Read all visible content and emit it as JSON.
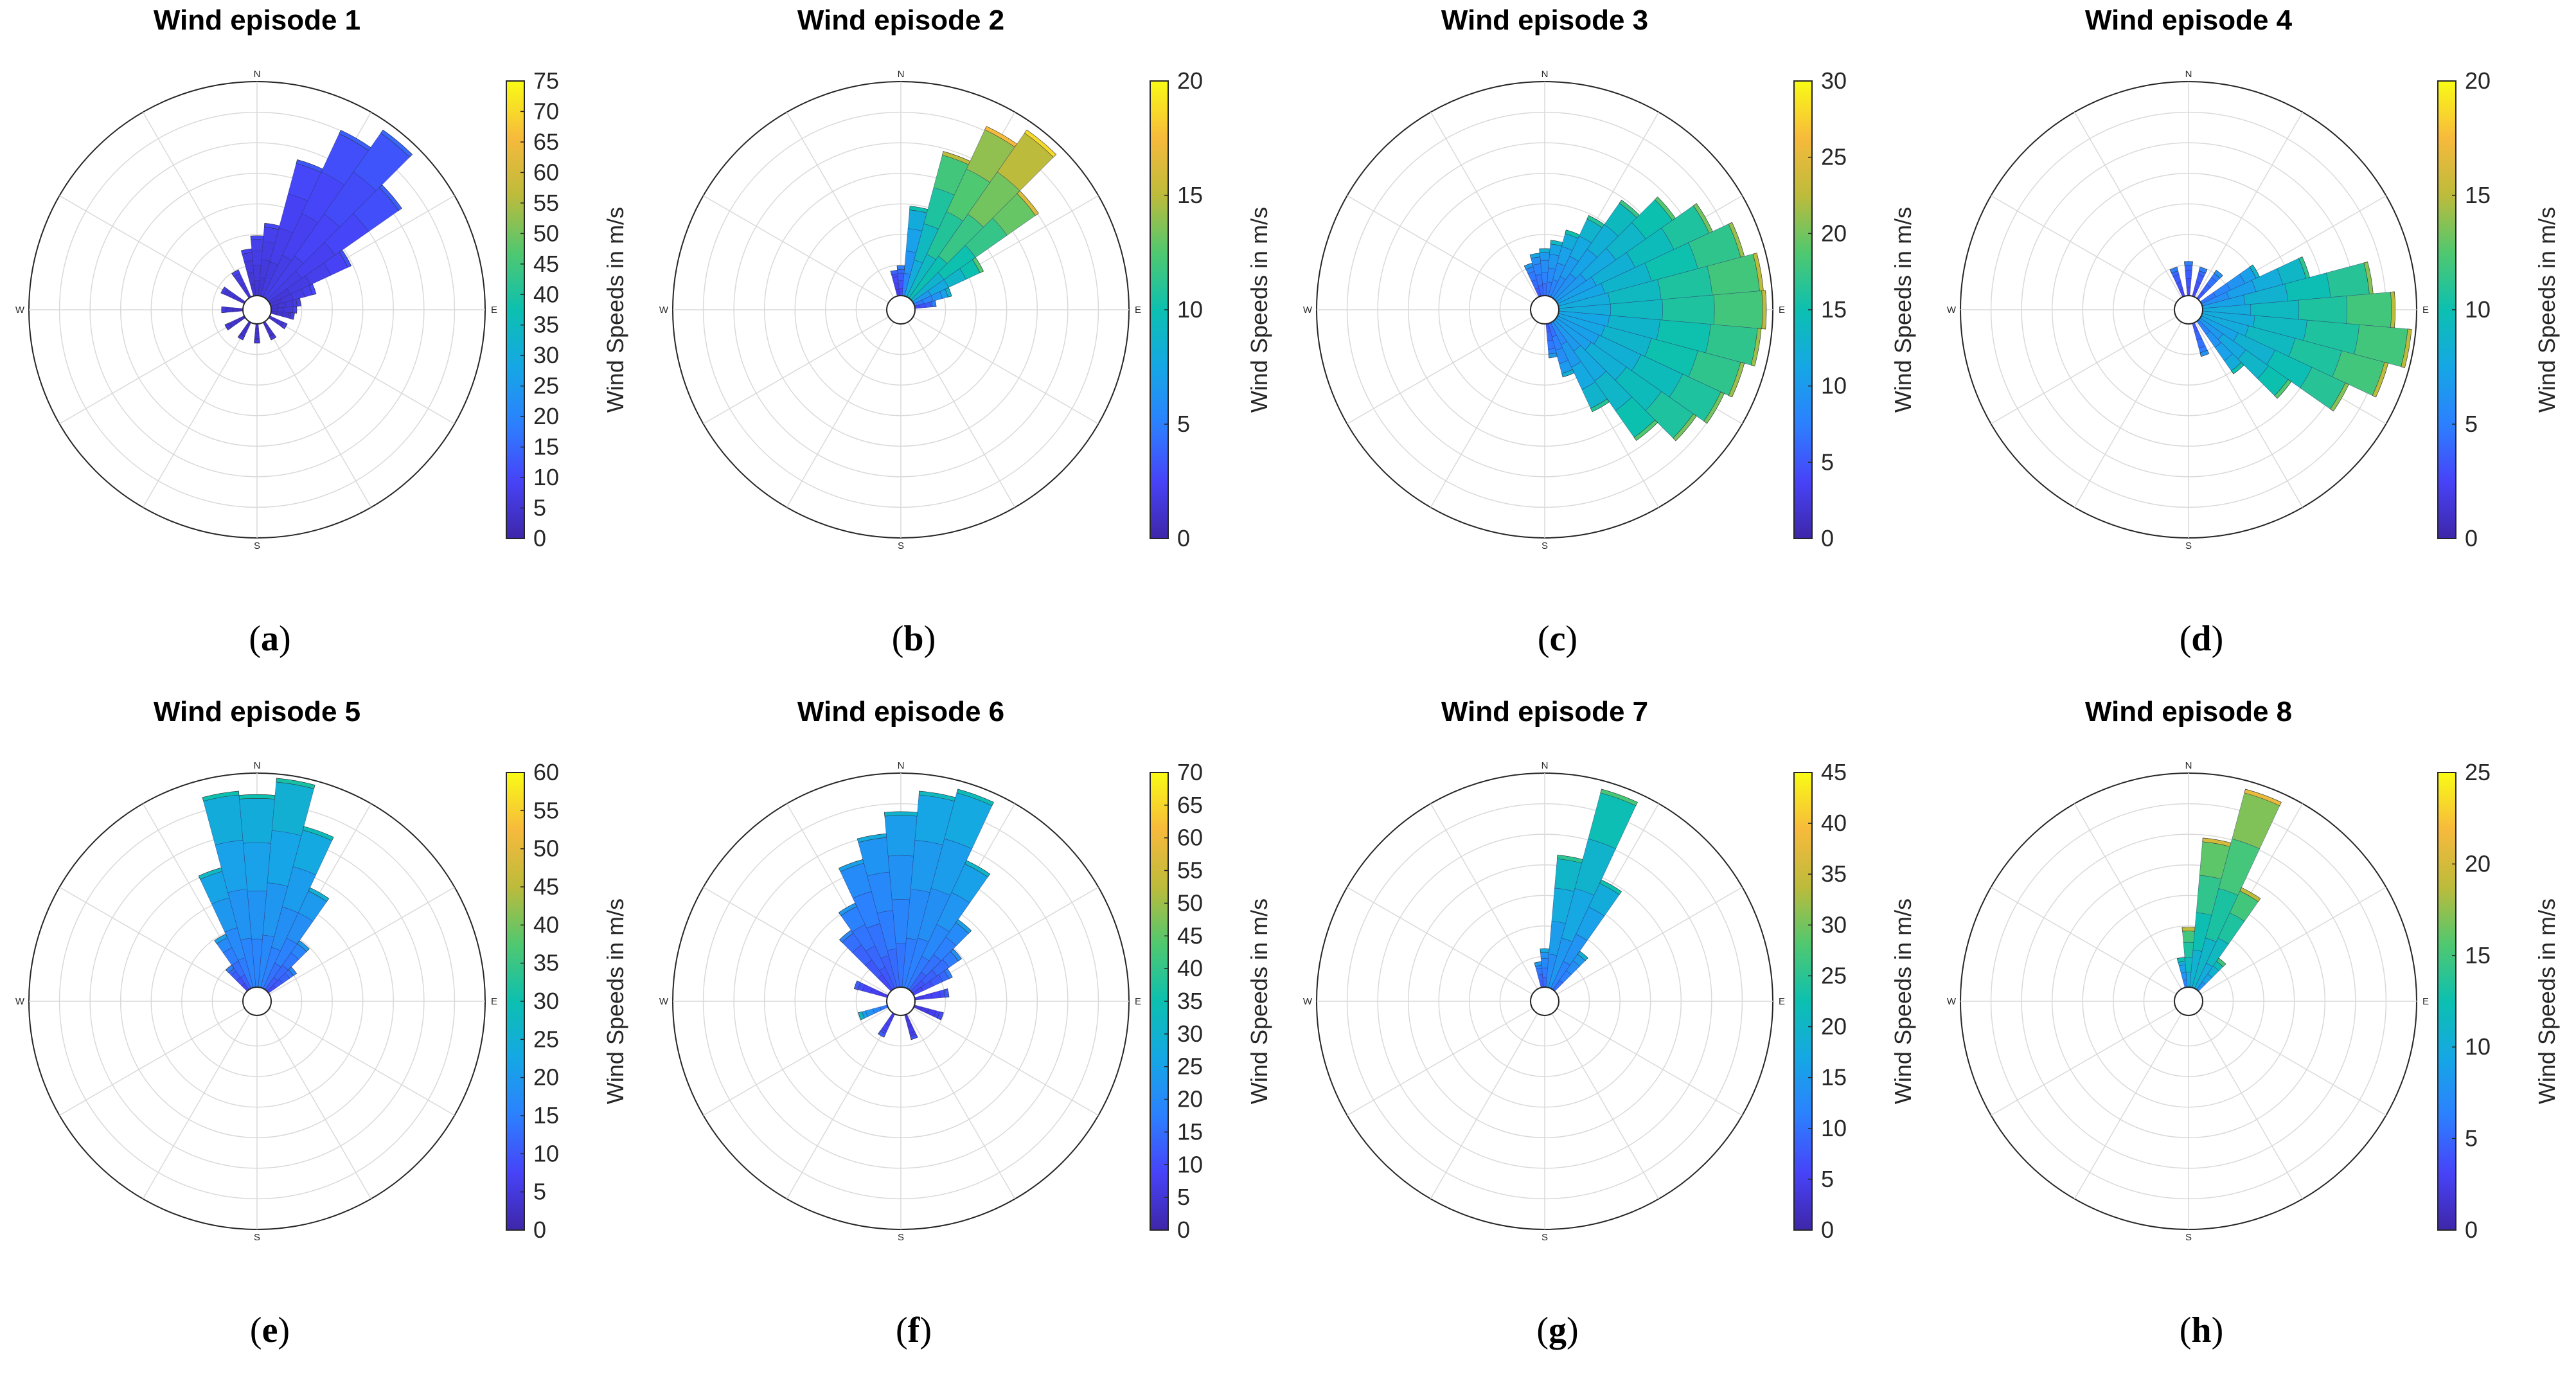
{
  "figure": {
    "colormap_stops": [
      "#3e26a8",
      "#4743f8",
      "#2c80ff",
      "#15a7e5",
      "#0cc0b0",
      "#50c86f",
      "#bdbb3b",
      "#f7ba3c",
      "#f9fb15"
    ]
  },
  "chart_data": [
    {
      "type": "polar-bar",
      "title": "Wind episode 1",
      "caption_letter": "a",
      "directions": [
        "N",
        "E",
        "S",
        "W"
      ],
      "colorbar": {
        "label": "Wind Speeds in m/s",
        "min": 0,
        "max": 75,
        "ticks": [
          0,
          5,
          10,
          15,
          20,
          25,
          30,
          35,
          40,
          45,
          50,
          55,
          60,
          65,
          70,
          75
        ]
      },
      "num_rings": 7,
      "sectors": [
        {
          "angle": 10,
          "r": 0.34,
          "v": 8
        },
        {
          "angle": 20,
          "r": 0.66,
          "v": 10
        },
        {
          "angle": 30,
          "r": 0.86,
          "v": 11
        },
        {
          "angle": 40,
          "r": 0.96,
          "v": 12
        },
        {
          "angle": 50,
          "r": 0.76,
          "v": 11
        },
        {
          "angle": 60,
          "r": 0.42,
          "v": 9
        },
        {
          "angle": 70,
          "r": 0.22,
          "v": 8
        },
        {
          "angle": 80,
          "r": 0.14,
          "v": 7
        },
        {
          "angle": 90,
          "r": 0.12,
          "v": 7
        },
        {
          "angle": 100,
          "r": 0.11,
          "v": 6
        },
        {
          "angle": 120,
          "r": 0.09,
          "v": 6
        },
        {
          "angle": 150,
          "r": 0.09,
          "v": 5
        },
        {
          "angle": 180,
          "r": 0.09,
          "v": 5
        },
        {
          "angle": 210,
          "r": 0.09,
          "v": 5
        },
        {
          "angle": 240,
          "r": 0.1,
          "v": 5
        },
        {
          "angle": 270,
          "r": 0.1,
          "v": 5
        },
        {
          "angle": 300,
          "r": 0.12,
          "v": 6
        },
        {
          "angle": 330,
          "r": 0.14,
          "v": 7
        },
        {
          "angle": 350,
          "r": 0.22,
          "v": 7
        },
        {
          "angle": 0,
          "r": 0.28,
          "v": 8
        }
      ]
    },
    {
      "type": "polar-bar",
      "title": "Wind episode 2",
      "caption_letter": "b",
      "directions": [
        "N",
        "E",
        "S",
        "W"
      ],
      "colorbar": {
        "label": "Wind Speeds in m/s",
        "min": 0,
        "max": 20,
        "ticks": [
          0,
          5,
          10,
          15,
          20
        ]
      },
      "num_rings": 7,
      "sectors": [
        {
          "angle": 10,
          "r": 0.42,
          "v": 8
        },
        {
          "angle": 20,
          "r": 0.7,
          "v": 12
        },
        {
          "angle": 30,
          "r": 0.88,
          "v": 14
        },
        {
          "angle": 40,
          "r": 0.96,
          "v": 15
        },
        {
          "angle": 50,
          "r": 0.72,
          "v": 13
        },
        {
          "angle": 60,
          "r": 0.36,
          "v": 10
        },
        {
          "angle": 70,
          "r": 0.18,
          "v": 7
        },
        {
          "angle": 80,
          "r": 0.1,
          "v": 4
        },
        {
          "angle": 350,
          "r": 0.12,
          "v": 3
        },
        {
          "angle": 0,
          "r": 0.14,
          "v": 4
        }
      ]
    },
    {
      "type": "polar-bar",
      "title": "Wind episode 3",
      "caption_letter": "c",
      "directions": [
        "N",
        "E",
        "S",
        "W"
      ],
      "colorbar": {
        "label": "Wind Speeds in m/s",
        "min": 0,
        "max": 30,
        "ticks": [
          0,
          5,
          10,
          15,
          20,
          25,
          30
        ]
      },
      "num_rings": 7,
      "sectors": [
        {
          "angle": 0,
          "r": 0.22,
          "v": 10
        },
        {
          "angle": 10,
          "r": 0.26,
          "v": 11
        },
        {
          "angle": 20,
          "r": 0.32,
          "v": 12
        },
        {
          "angle": 30,
          "r": 0.42,
          "v": 13
        },
        {
          "angle": 40,
          "r": 0.56,
          "v": 14
        },
        {
          "angle": 50,
          "r": 0.68,
          "v": 15
        },
        {
          "angle": 60,
          "r": 0.8,
          "v": 16
        },
        {
          "angle": 70,
          "r": 0.9,
          "v": 17
        },
        {
          "angle": 80,
          "r": 0.96,
          "v": 18
        },
        {
          "angle": 90,
          "r": 0.97,
          "v": 18
        },
        {
          "angle": 100,
          "r": 0.95,
          "v": 17
        },
        {
          "angle": 110,
          "r": 0.9,
          "v": 17
        },
        {
          "angle": 120,
          "r": 0.86,
          "v": 16
        },
        {
          "angle": 130,
          "r": 0.8,
          "v": 16
        },
        {
          "angle": 140,
          "r": 0.68,
          "v": 15
        },
        {
          "angle": 150,
          "r": 0.46,
          "v": 13
        },
        {
          "angle": 160,
          "r": 0.26,
          "v": 10
        },
        {
          "angle": 170,
          "r": 0.16,
          "v": 8
        },
        {
          "angle": 340,
          "r": 0.16,
          "v": 8
        },
        {
          "angle": 350,
          "r": 0.2,
          "v": 9
        }
      ]
    },
    {
      "type": "polar-bar",
      "title": "Wind episode 4",
      "caption_letter": "d",
      "directions": [
        "N",
        "E",
        "S",
        "W"
      ],
      "colorbar": {
        "label": "Wind Speeds in m/s",
        "min": 0,
        "max": 20,
        "ticks": [
          0,
          5,
          10,
          15,
          20
        ]
      },
      "num_rings": 7,
      "sectors": [
        {
          "angle": 0,
          "r": 0.16,
          "v": 4
        },
        {
          "angle": 20,
          "r": 0.14,
          "v": 4
        },
        {
          "angle": 40,
          "r": 0.16,
          "v": 5
        },
        {
          "angle": 60,
          "r": 0.3,
          "v": 7
        },
        {
          "angle": 70,
          "r": 0.52,
          "v": 9
        },
        {
          "angle": 80,
          "r": 0.8,
          "v": 11
        },
        {
          "angle": 90,
          "r": 0.9,
          "v": 12
        },
        {
          "angle": 100,
          "r": 0.98,
          "v": 12
        },
        {
          "angle": 110,
          "r": 0.9,
          "v": 12
        },
        {
          "angle": 120,
          "r": 0.76,
          "v": 11
        },
        {
          "angle": 130,
          "r": 0.52,
          "v": 10
        },
        {
          "angle": 140,
          "r": 0.3,
          "v": 8
        },
        {
          "angle": 160,
          "r": 0.16,
          "v": 5
        },
        {
          "angle": 340,
          "r": 0.14,
          "v": 4
        }
      ]
    },
    {
      "type": "polar-bar",
      "title": "Wind episode 5",
      "caption_letter": "e",
      "directions": [
        "N",
        "E",
        "S",
        "W"
      ],
      "colorbar": {
        "label": "Wind Speeds in m/s",
        "min": 0,
        "max": 60,
        "ticks": [
          0,
          5,
          10,
          15,
          20,
          25,
          30,
          35,
          40,
          45,
          50,
          55,
          60
        ]
      },
      "num_rings": 7,
      "sectors": [
        {
          "angle": 340,
          "r": 0.58,
          "v": 22
        },
        {
          "angle": 350,
          "r": 0.92,
          "v": 24
        },
        {
          "angle": 0,
          "r": 0.9,
          "v": 24
        },
        {
          "angle": 10,
          "r": 0.98,
          "v": 25
        },
        {
          "angle": 20,
          "r": 0.78,
          "v": 23
        },
        {
          "angle": 30,
          "r": 0.52,
          "v": 20
        },
        {
          "angle": 40,
          "r": 0.28,
          "v": 16
        },
        {
          "angle": 50,
          "r": 0.16,
          "v": 13
        },
        {
          "angle": 330,
          "r": 0.28,
          "v": 17
        },
        {
          "angle": 320,
          "r": 0.14,
          "v": 12
        }
      ]
    },
    {
      "type": "polar-bar",
      "title": "Wind episode 6",
      "caption_letter": "f",
      "directions": [
        "N",
        "E",
        "S",
        "W"
      ],
      "colorbar": {
        "label": "Wind Speeds in m/s",
        "min": 0,
        "max": 70,
        "ticks": [
          0,
          5,
          10,
          15,
          20,
          25,
          30,
          35,
          40,
          45,
          50,
          55,
          60,
          65,
          70
        ]
      },
      "num_rings": 7,
      "sectors": [
        {
          "angle": 340,
          "r": 0.62,
          "v": 20
        },
        {
          "angle": 350,
          "r": 0.72,
          "v": 22
        },
        {
          "angle": 0,
          "r": 0.82,
          "v": 24
        },
        {
          "angle": 10,
          "r": 0.92,
          "v": 26
        },
        {
          "angle": 20,
          "r": 0.96,
          "v": 27
        },
        {
          "angle": 30,
          "r": 0.66,
          "v": 25
        },
        {
          "angle": 40,
          "r": 0.4,
          "v": 20
        },
        {
          "angle": 50,
          "r": 0.28,
          "v": 17
        },
        {
          "angle": 60,
          "r": 0.2,
          "v": 14
        },
        {
          "angle": 80,
          "r": 0.16,
          "v": 10
        },
        {
          "angle": 110,
          "r": 0.14,
          "v": 8
        },
        {
          "angle": 160,
          "r": 0.12,
          "v": 8
        },
        {
          "angle": 210,
          "r": 0.12,
          "v": 10
        },
        {
          "angle": 250,
          "r": 0.14,
          "v": 25
        },
        {
          "angle": 290,
          "r": 0.16,
          "v": 10
        },
        {
          "angle": 320,
          "r": 0.34,
          "v": 15
        },
        {
          "angle": 330,
          "r": 0.44,
          "v": 18
        }
      ]
    },
    {
      "type": "polar-bar",
      "title": "Wind episode 7",
      "caption_letter": "g",
      "directions": [
        "N",
        "E",
        "S",
        "W"
      ],
      "colorbar": {
        "label": "Wind Speeds in m/s",
        "min": 0,
        "max": 45,
        "ticks": [
          0,
          5,
          10,
          15,
          20,
          25,
          30,
          35,
          40,
          45
        ]
      },
      "num_rings": 7,
      "sectors": [
        {
          "angle": 0,
          "r": 0.18,
          "v": 14
        },
        {
          "angle": 10,
          "r": 0.62,
          "v": 20
        },
        {
          "angle": 20,
          "r": 0.96,
          "v": 22
        },
        {
          "angle": 30,
          "r": 0.56,
          "v": 18
        },
        {
          "angle": 40,
          "r": 0.22,
          "v": 15
        },
        {
          "angle": 350,
          "r": 0.12,
          "v": 12
        }
      ]
    },
    {
      "type": "polar-bar",
      "title": "Wind episode 8",
      "caption_letter": "h",
      "directions": [
        "N",
        "E",
        "S",
        "W"
      ],
      "colorbar": {
        "label": "Wind Speeds in m/s",
        "min": 0,
        "max": 25,
        "ticks": [
          0,
          5,
          10,
          15,
          20,
          25
        ]
      },
      "num_rings": 7,
      "sectors": [
        {
          "angle": 0,
          "r": 0.28,
          "v": 15
        },
        {
          "angle": 10,
          "r": 0.7,
          "v": 16
        },
        {
          "angle": 20,
          "r": 0.96,
          "v": 17
        },
        {
          "angle": 30,
          "r": 0.52,
          "v": 15
        },
        {
          "angle": 40,
          "r": 0.18,
          "v": 12
        },
        {
          "angle": 350,
          "r": 0.14,
          "v": 10
        }
      ]
    }
  ]
}
